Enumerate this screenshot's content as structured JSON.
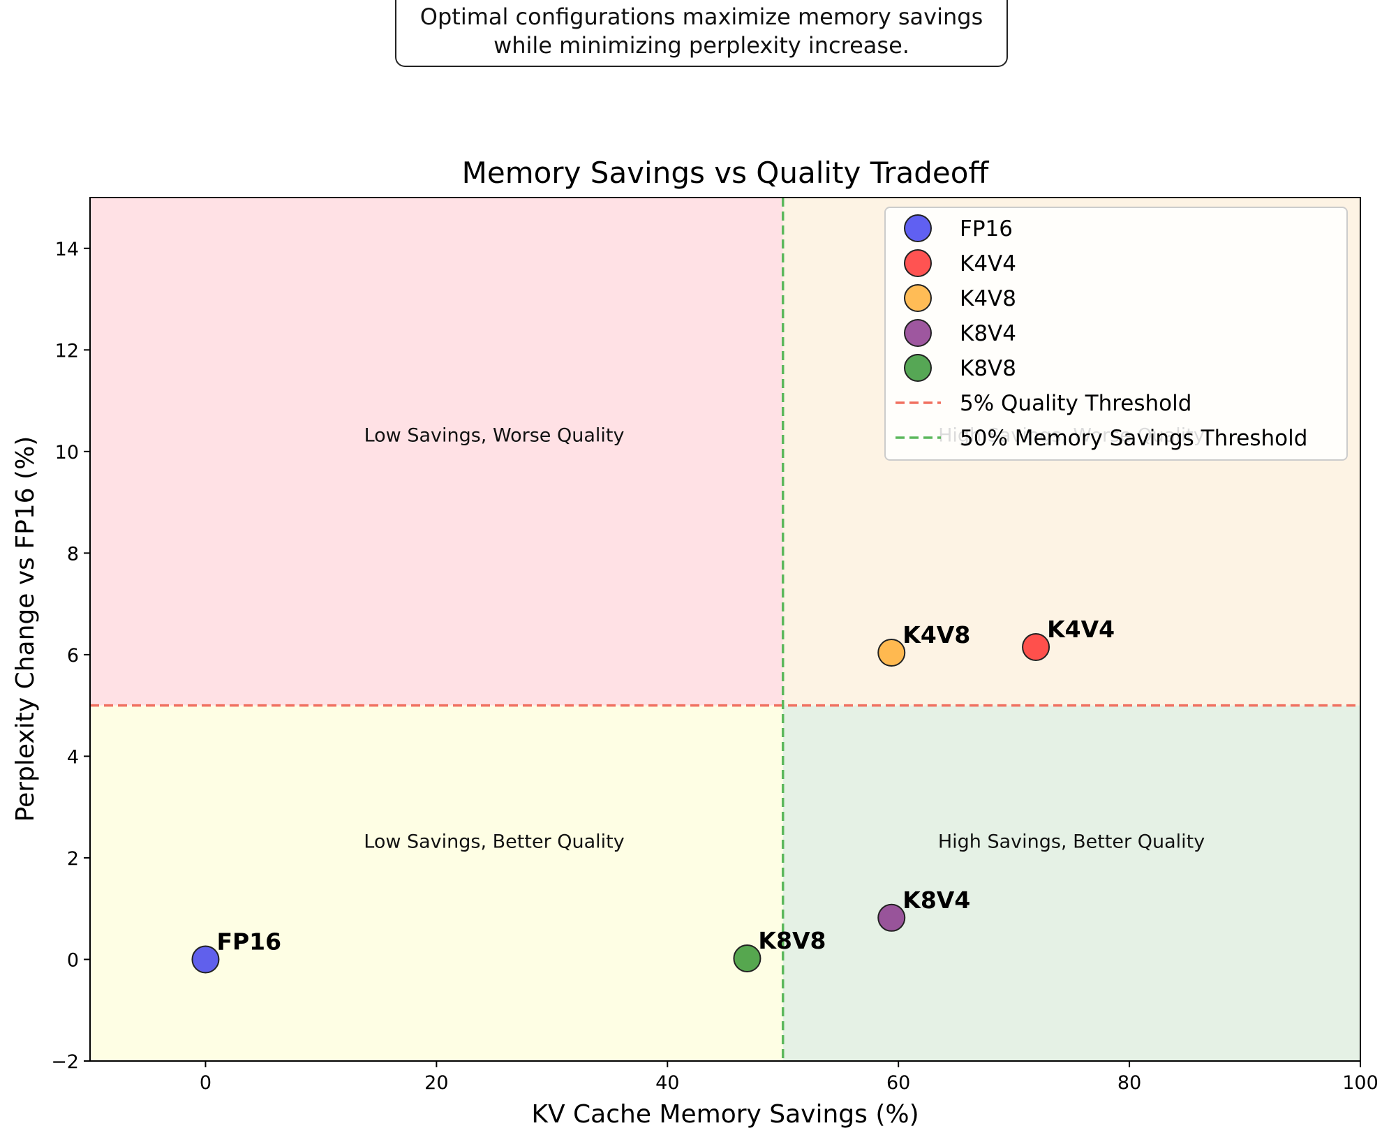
{
  "note": {
    "line1": "Optimal configurations maximize memory savings",
    "line2": "while minimizing perplexity increase."
  },
  "chart_data": {
    "type": "scatter",
    "title": "Memory Savings vs Quality Tradeoff",
    "xlabel": "KV Cache Memory Savings (%)",
    "ylabel": "Perplexity Change vs FP16 (%)",
    "xlim": [
      -10,
      100
    ],
    "ylim": [
      -2,
      15
    ],
    "xticks": [
      0,
      20,
      40,
      60,
      80,
      100
    ],
    "yticks": [
      -2,
      0,
      2,
      4,
      6,
      8,
      10,
      12,
      14
    ],
    "grid": false,
    "legend_position": "upper-right",
    "points": [
      {
        "name": "FP16",
        "x": 0,
        "y": 0,
        "color": "#2b2bef"
      },
      {
        "name": "K4V4",
        "x": 71.9,
        "y": 6.15,
        "color": "#ff1a1a"
      },
      {
        "name": "K4V8",
        "x": 59.4,
        "y": 6.04,
        "color": "#ffa51f"
      },
      {
        "name": "K8V4",
        "x": 59.4,
        "y": 0.82,
        "color": "#7d1f80"
      },
      {
        "name": "K8V8",
        "x": 46.9,
        "y": 0.02,
        "color": "#1e8a1e"
      }
    ],
    "thresholds": [
      {
        "name": "5% Quality Threshold",
        "axis": "y",
        "value": 5,
        "color": "#f07060"
      },
      {
        "name": "50% Memory Savings Threshold",
        "axis": "x",
        "value": 50,
        "color": "#5cb85c"
      }
    ],
    "regions": [
      {
        "label": "Low Savings, Worse Quality",
        "x": [
          -10,
          50
        ],
        "y": [
          5,
          15
        ],
        "color": "#ffe1e5"
      },
      {
        "label": "High Savings, Worse Quality",
        "x": [
          50,
          100
        ],
        "y": [
          5,
          15
        ],
        "color": "#fdf3e4"
      },
      {
        "label": "Low Savings, Better Quality",
        "x": [
          -10,
          50
        ],
        "y": [
          -2,
          5
        ],
        "color": "#fefee4"
      },
      {
        "label": "High Savings, Better Quality",
        "x": [
          50,
          100
        ],
        "y": [
          -2,
          5
        ],
        "color": "#e5f1e5"
      }
    ]
  }
}
